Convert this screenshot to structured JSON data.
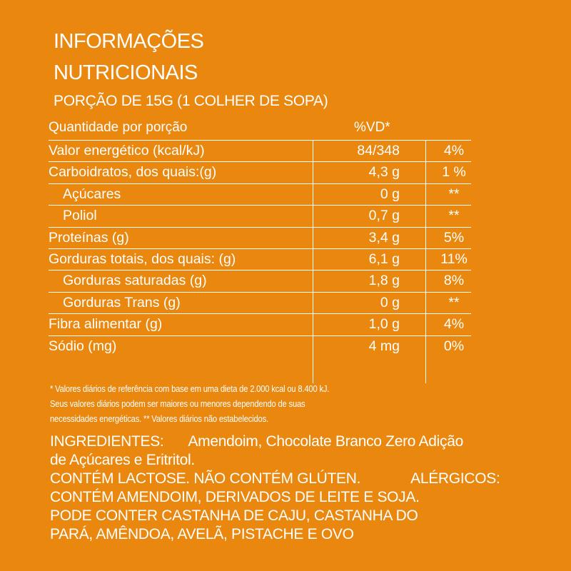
{
  "title": {
    "line1": "INFORMAÇÕES",
    "line2": "NUTRICIONAIS"
  },
  "portion": "PORÇÃO DE 15G (1 COLHER DE SOPA)",
  "table": {
    "header_left": "Quantidade por porção",
    "header_vd": "%VD*",
    "rows": [
      {
        "name": "Valor energético (kcal/kJ)",
        "amount": "84/348",
        "vd": "4%"
      },
      {
        "name": "Carboidratos, dos quais:(g)",
        "amount": "4,3 g",
        "vd": "1 %"
      },
      {
        "name": "Açúcares",
        "amount": "0 g",
        "vd": "**"
      },
      {
        "name": "Poliol",
        "amount": "0,7 g",
        "vd": "**"
      },
      {
        "name": "Proteínas (g)",
        "amount": "3,4 g",
        "vd": "5%"
      },
      {
        "name": "Gorduras totais, dos quais: (g)",
        "amount": "6,1 g",
        "vd": "11%"
      },
      {
        "name": "Gorduras saturadas (g)",
        "amount": "1,8 g",
        "vd": "8%"
      },
      {
        "name": "Gorduras Trans (g)",
        "amount": "0 g",
        "vd": "**"
      },
      {
        "name": "Fibra alimentar (g)",
        "amount": "1,0 g",
        "vd": "4%"
      },
      {
        "name": "Sódio (mg)",
        "amount": "4 mg",
        "vd": "0%"
      }
    ]
  },
  "footnote": {
    "line1": "* Valores diários de referência com base em uma dieta de 2.000 kcal ou 8.400 kJ.",
    "line2": "Seus valores diários podem ser maiores ou menores dependendo de suas",
    "line3": "necessidades energéticas. ** Valores diários não estabelecidos."
  },
  "ingredients": {
    "label": "INGREDIENTES:",
    "text1": "Amendoim, Chocolate Branco Zero Adição",
    "text2": "de Açúcares e Eritritol.",
    "lactose": "CONTÉM LACTOSE. NÃO CONTÉM GLÚTEN.",
    "alergicos": "ALÉRGICOS:",
    "line4": "CONTÉM AMENDOIM, DERIVADOS DE LEITE E SOJA.",
    "line5": "PODE CONTER CASTANHA DE CAJU, CASTANHA DO",
    "line6": "PARÁ, AMÊNDOA, AVELÃ, PISTACHE E OVO"
  },
  "colors": {
    "background": "#E9870E",
    "text": "#FFFFFF"
  }
}
